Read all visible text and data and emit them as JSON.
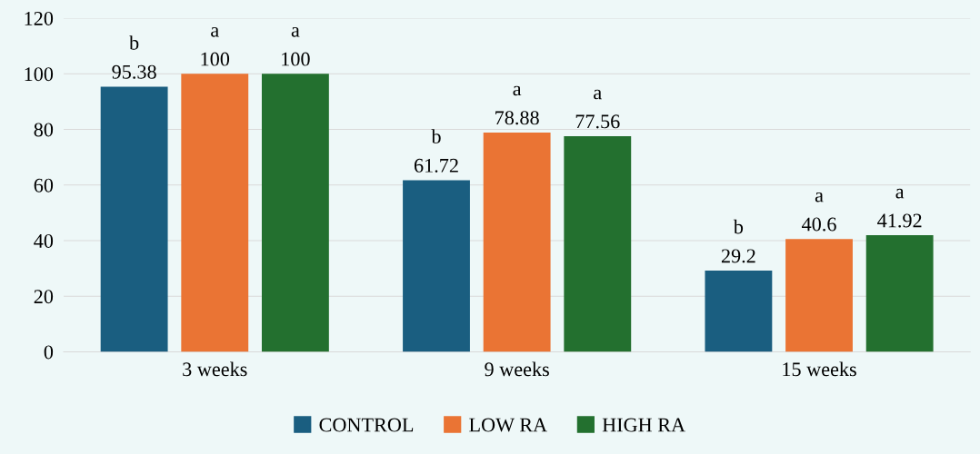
{
  "chart_data": {
    "type": "bar",
    "categories": [
      "3 weeks",
      "9 weeks",
      "15 weeks"
    ],
    "series": [
      {
        "name": "CONTROL",
        "color": "#1a5e80",
        "values": [
          95.38,
          61.72,
          29.2
        ]
      },
      {
        "name": "LOW RA",
        "color": "#ea7434",
        "values": [
          100,
          78.88,
          40.6
        ]
      },
      {
        "name": "HIGH RA",
        "color": "#23702f",
        "values": [
          100,
          77.56,
          41.92
        ]
      }
    ],
    "ylim": [
      0,
      120
    ],
    "yticks": [
      0,
      20,
      40,
      60,
      80,
      100,
      120
    ],
    "grid": "y",
    "legend": "bottom",
    "data_labels": true,
    "annotations": [
      "b",
      "a",
      "a",
      "b",
      "a",
      "a",
      "b",
      "a",
      "a"
    ]
  }
}
